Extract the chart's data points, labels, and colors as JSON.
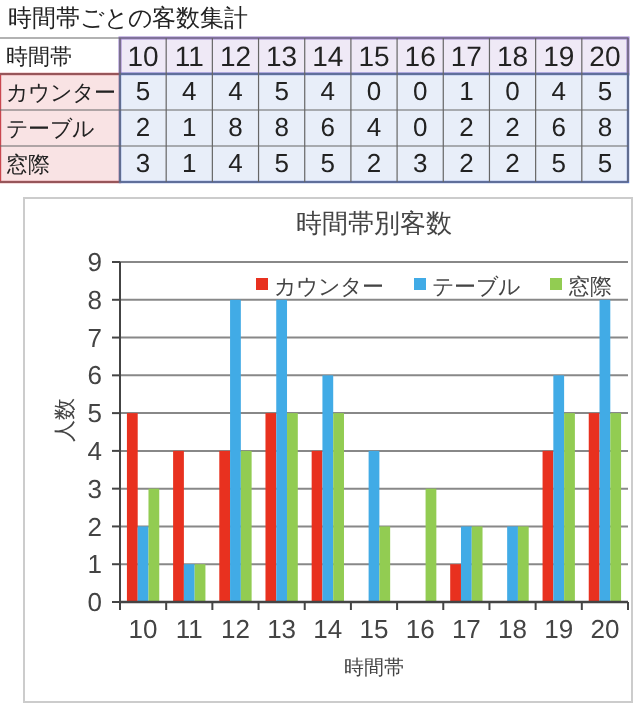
{
  "chart_data": {
    "type": "bar",
    "title": "時間帯別客数",
    "xlabel": "時間帯",
    "ylabel": "人数",
    "annotations": [
      "時間帯ごとの客数集計",
      "時間帯"
    ],
    "categories": [
      "10",
      "11",
      "12",
      "13",
      "14",
      "15",
      "16",
      "17",
      "18",
      "19",
      "20"
    ],
    "series": [
      {
        "name": "カウンター",
        "color": "#e8311f",
        "values": [
          5,
          4,
          4,
          5,
          4,
          0,
          0,
          1,
          0,
          4,
          5
        ]
      },
      {
        "name": "テーブル",
        "color": "#41abe6",
        "values": [
          2,
          1,
          8,
          8,
          6,
          4,
          0,
          2,
          2,
          6,
          8
        ]
      },
      {
        "name": "窓際",
        "color": "#92cc52",
        "values": [
          3,
          1,
          4,
          5,
          5,
          2,
          3,
          2,
          2,
          5,
          5
        ]
      }
    ],
    "ylim": [
      0,
      9
    ],
    "yticks": [
      0,
      1,
      2,
      3,
      4,
      5,
      6,
      7,
      8,
      9
    ],
    "grid": "y",
    "legend": "top",
    "data_labels": true
  }
}
